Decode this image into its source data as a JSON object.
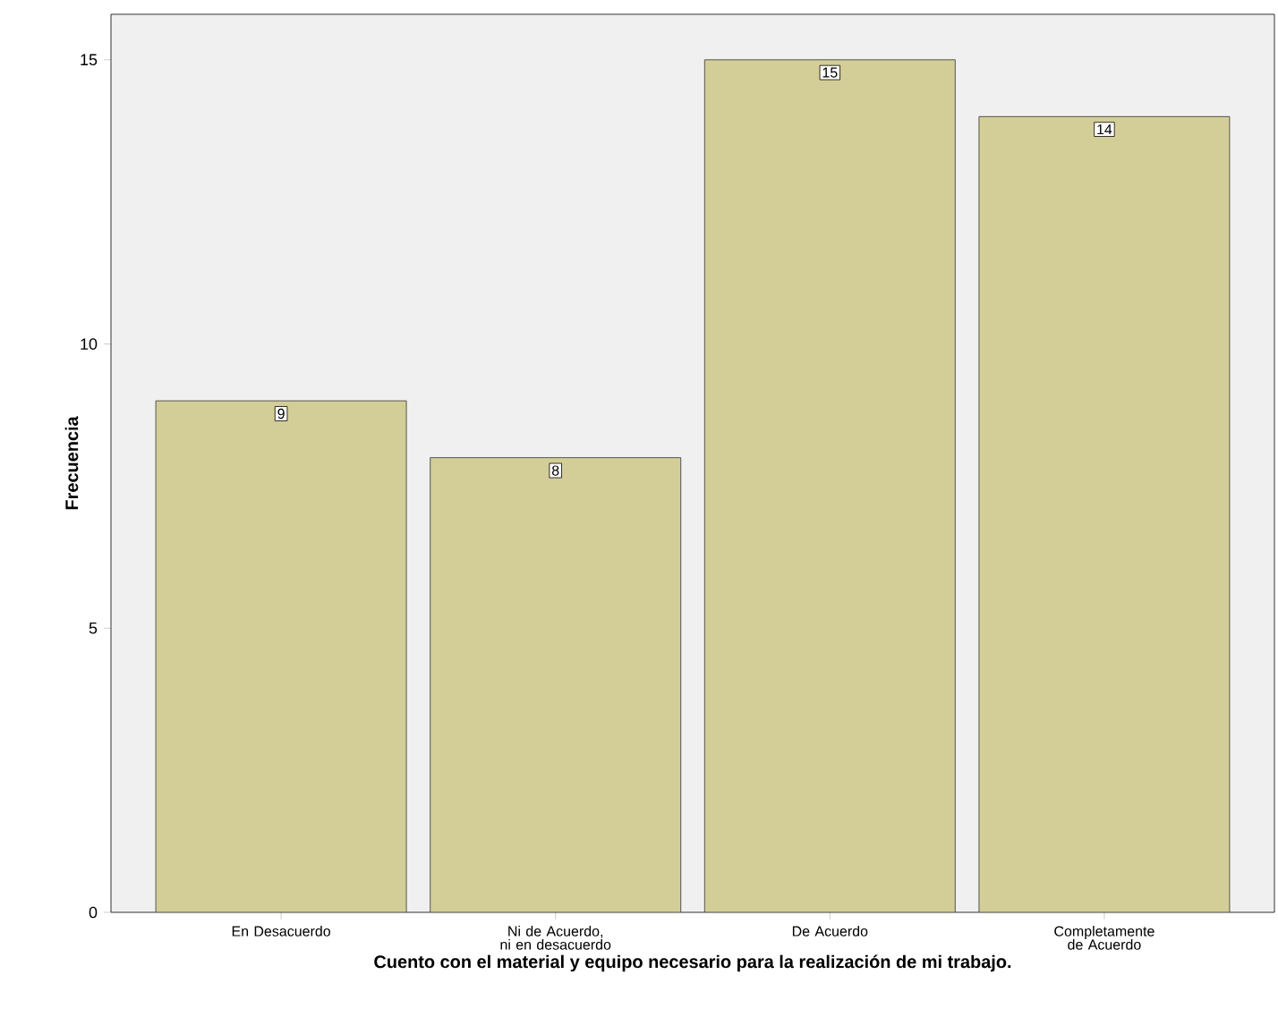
{
  "chart_data": {
    "type": "bar",
    "xlabel": "Cuento con el material y equipo necesario para la realización de mi trabajo.",
    "ylabel": "Frecuencia",
    "categories": [
      "En Desacuerdo",
      "Ni de Acuerdo, ni en desacuerdo",
      "De Acuerdo",
      "Completamente de Acuerdo"
    ],
    "values": [
      9,
      8,
      15,
      14
    ],
    "color": "#d3ce97",
    "ylim": [
      0,
      15.8
    ],
    "yticks": [
      0,
      5,
      10,
      15
    ],
    "grid": false,
    "data_labels": true
  }
}
